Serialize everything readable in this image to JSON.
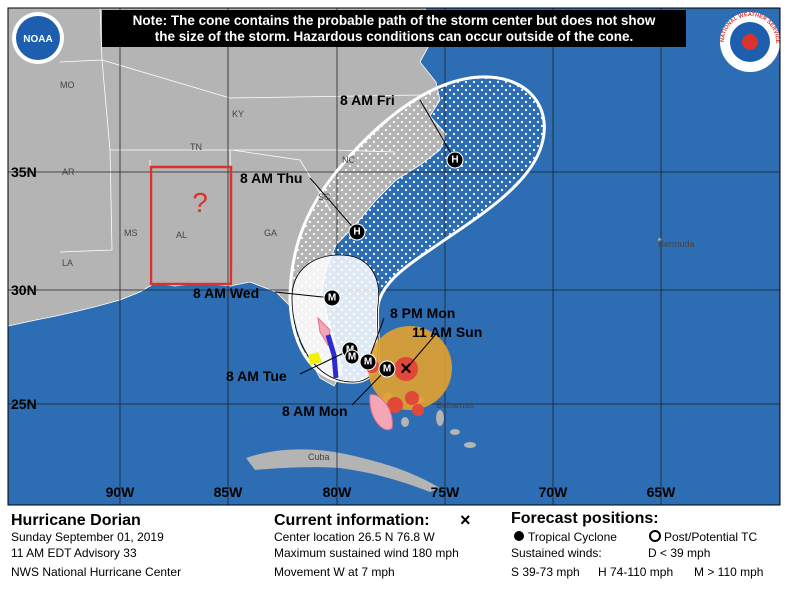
{
  "note": [
    "Note: The cone contains the probable path of the storm center but does not show",
    "the size of the storm. Hazardous conditions can occur outside of the cone."
  ],
  "logos": {
    "noaa": "NOAA",
    "nws": "NATIONAL WEATHER SERVICE"
  },
  "map": {
    "latitudes": [
      "35N",
      "30N",
      "25N"
    ],
    "longitudes": [
      "90W",
      "85W",
      "80W",
      "75W",
      "70W",
      "65W"
    ],
    "states": [
      "MO",
      "KY",
      "TN",
      "AR",
      "NC",
      "SC",
      "GA",
      "AL",
      "MS",
      "LA"
    ],
    "places": [
      "Bermuda",
      "Bahamas",
      "Cuba"
    ],
    "annotation": "?"
  },
  "forecast_points": [
    {
      "label": "11 AM Sun",
      "marker": "×"
    },
    {
      "label": "8 AM Mon",
      "marker": "M"
    },
    {
      "label": "8 PM Mon",
      "marker": "M"
    },
    {
      "label": "8 AM Tue",
      "marker": "M"
    },
    {
      "label": "8 AM Wed",
      "marker": "M"
    },
    {
      "label": "8 AM Thu",
      "marker": "H"
    },
    {
      "label": "8 AM Fri",
      "marker": "H"
    }
  ],
  "extra_marker": "M",
  "footer": {
    "storm": {
      "name": "Hurricane Dorian",
      "date": "Sunday September 01, 2019",
      "advisory": "11 AM EDT Advisory 33",
      "center": "NWS National Hurricane Center"
    },
    "current": {
      "title": "Current information:",
      "symbol": "×",
      "location": "Center location 26.5 N 76.8 W",
      "wind": "Maximum sustained wind 180 mph",
      "movement": "Movement W at 7 mph"
    },
    "forecast": {
      "title": "Forecast positions:",
      "tropical": "Tropical Cyclone",
      "post": "Post/Potential TC",
      "winds": "Sustained winds:",
      "d": "D < 39 mph",
      "s": "S 39-73 mph",
      "h": "H 74-110 mph",
      "m": "M > 110 mph"
    }
  }
}
